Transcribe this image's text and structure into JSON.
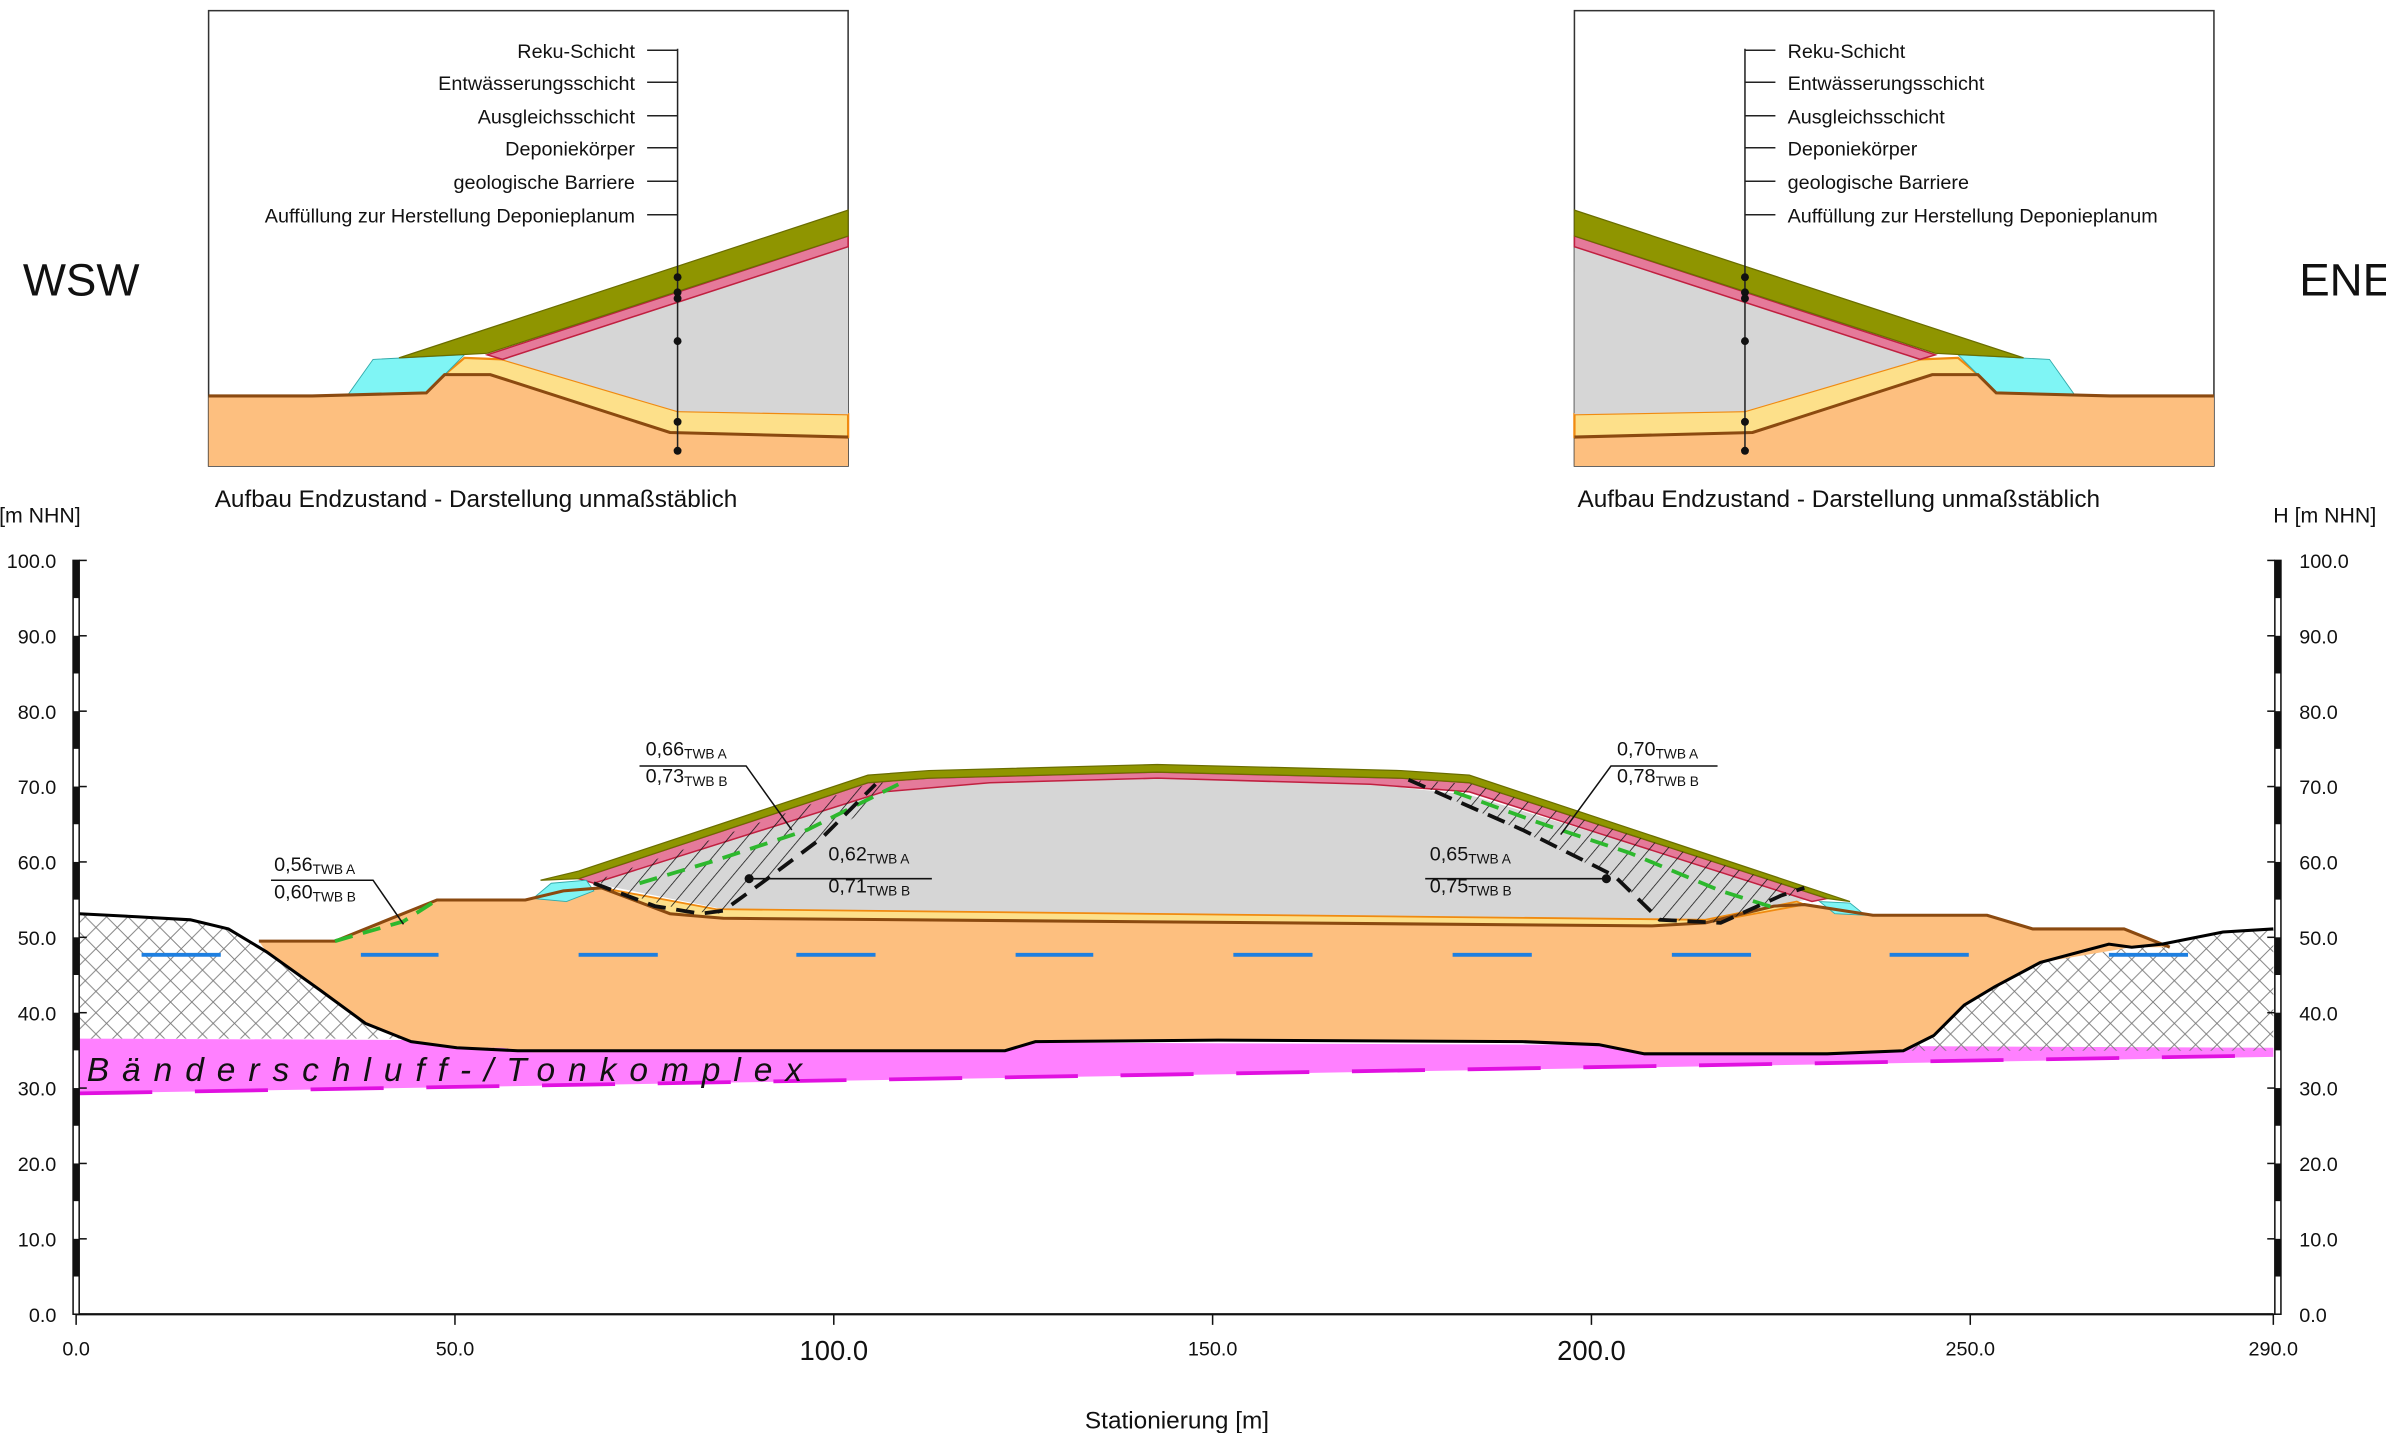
{
  "orientation": {
    "left": "WSW",
    "right": "ENE"
  },
  "insets": [
    {
      "layers": [
        "Reku-Schicht",
        "Entwässerungsschicht",
        "Ausgleichsschicht",
        "Deponiekörper",
        "geologische Barriere",
        "Auffüllung zur Herstellung Deponieplanum"
      ],
      "caption": "Aufbau Endzustand - Darstellung unmaßstäblich"
    },
    {
      "layers": [
        "Reku-Schicht",
        "Entwässerungsschicht",
        "Ausgleichsschicht",
        "Deponiekörper",
        "geologische Barriere",
        "Auffüllung zur Herstellung Deponieplanum"
      ],
      "caption": "Aufbau Endzustand - Darstellung unmaßstäblich"
    }
  ],
  "axes": {
    "left_label": "H [m NHN]",
    "right_label": "H [m NHN]",
    "x_label": "Stationierung [m]",
    "yticks": [
      "0.0",
      "10.0",
      "20.0",
      "30.0",
      "40.0",
      "50.0",
      "60.0",
      "70.0",
      "80.0",
      "90.0",
      "100.0"
    ],
    "xticks": [
      "0.0",
      "50.0",
      "100.0",
      "150.0",
      "200.0",
      "250.0",
      "290.0"
    ]
  },
  "formation": "Bänderschluff-/Tonkomplex",
  "safety_factor_subscripts": {
    "a": "TWB A",
    "b": "TWB B"
  },
  "safety_factors": [
    {
      "a": "0,56",
      "b": "0,60"
    },
    {
      "a": "0,66",
      "b": "0,73"
    },
    {
      "a": "0,62",
      "b": "0,71"
    },
    {
      "a": "0,70",
      "b": "0,78"
    },
    {
      "a": "0,65",
      "b": "0,75"
    }
  ]
}
